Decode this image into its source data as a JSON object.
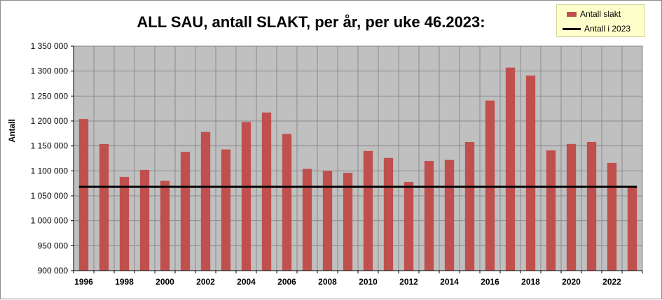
{
  "chart_data": {
    "type": "bar",
    "title": "ALL SAU, antall SLAKT, per år, per uke 46.2023:",
    "ylabel": "Antall",
    "xlabel": "",
    "ylim": [
      900000,
      1350000
    ],
    "ytick_step": 50000,
    "ytick_labels": [
      "900 000",
      "950 000",
      "1 000 000",
      "1 050 000",
      "1 100 000",
      "1 150 000",
      "1 200 000",
      "1 250 000",
      "1 300 000",
      "1 350 000"
    ],
    "categories": [
      "1996",
      "1997",
      "1998",
      "1999",
      "2000",
      "2001",
      "2002",
      "2003",
      "2004",
      "2005",
      "2006",
      "2007",
      "2008",
      "2009",
      "2010",
      "2011",
      "2012",
      "2013",
      "2014",
      "2015",
      "2016",
      "2017",
      "2018",
      "2019",
      "2020",
      "2021",
      "2022",
      "2023"
    ],
    "xtick_labels": [
      "1996",
      "1998",
      "2000",
      "2002",
      "2004",
      "2006",
      "2008",
      "2010",
      "2012",
      "2014",
      "2016",
      "2018",
      "2020",
      "2022"
    ],
    "series": [
      {
        "name": "Antall slakt",
        "kind": "bar",
        "color": "#c0504d",
        "values": [
          1204000,
          1154000,
          1088000,
          1102000,
          1080000,
          1138000,
          1178000,
          1143000,
          1198000,
          1217000,
          1174000,
          1104000,
          1100000,
          1096000,
          1140000,
          1126000,
          1078000,
          1120000,
          1122000,
          1158000,
          1241000,
          1307000,
          1291000,
          1141000,
          1154000,
          1158000,
          1116000,
          1068000
        ]
      },
      {
        "name": "Antall i 2023",
        "kind": "line",
        "color": "#000000",
        "value": 1068000
      }
    ],
    "grid": true,
    "plot_background": "#c0c0c0",
    "legend_position": "top-right"
  }
}
